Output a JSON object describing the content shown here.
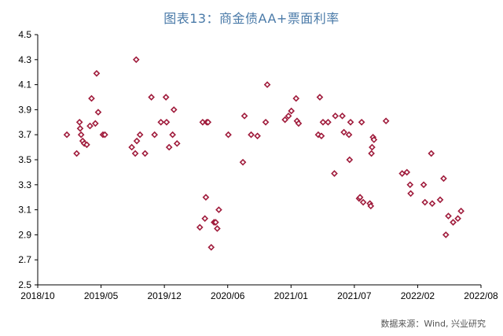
{
  "page": {
    "title": "图表13：商金债AA+票面利率",
    "source": "数据来源：Wind, 兴业研究"
  },
  "colors": {
    "title": "#4a7aa8",
    "marker_stroke": "#a01c3c",
    "marker_fill": "#ffffff",
    "axis": "#000000"
  },
  "chart_data": {
    "type": "scatter",
    "title": "图表13：商金债AA+票面利率",
    "xlabel": "",
    "ylabel": "",
    "grid": false,
    "x_range": [
      "2018-10",
      "2022-08"
    ],
    "x_tick_labels": [
      "2018/10",
      "2019/05",
      "2019/12",
      "2020/06",
      "2021/01",
      "2021/07",
      "2022/02",
      "2022/08"
    ],
    "ylim": [
      2.5,
      4.5
    ],
    "y_ticks": [
      2.5,
      2.7,
      2.9,
      3.1,
      3.3,
      3.5,
      3.7,
      3.9,
      4.1,
      4.3,
      4.5
    ],
    "y_tick_labels": [
      "2.5",
      "2.7",
      "2.9",
      "3.1",
      "3.3",
      "3.5",
      "3.7",
      "3.9",
      "4.1",
      "4.3",
      "4.5"
    ],
    "points": [
      [
        "2019-01-01",
        3.7
      ],
      [
        "2019-02-01",
        3.55
      ],
      [
        "2019-02-10",
        3.8
      ],
      [
        "2019-02-12",
        3.75
      ],
      [
        "2019-02-15",
        3.7
      ],
      [
        "2019-02-20",
        3.65
      ],
      [
        "2019-02-25",
        3.63
      ],
      [
        "2019-03-05",
        3.62
      ],
      [
        "2019-03-15",
        3.77
      ],
      [
        "2019-03-20",
        3.99
      ],
      [
        "2019-04-01",
        3.79
      ],
      [
        "2019-04-05",
        4.19
      ],
      [
        "2019-04-10",
        3.88
      ],
      [
        "2019-04-25",
        3.7
      ],
      [
        "2019-05-01",
        3.7
      ],
      [
        "2019-07-25",
        3.6
      ],
      [
        "2019-08-05",
        3.55
      ],
      [
        "2019-08-08",
        4.3
      ],
      [
        "2019-08-10",
        3.65
      ],
      [
        "2019-08-20",
        3.7
      ],
      [
        "2019-09-05",
        3.55
      ],
      [
        "2019-09-25",
        4.0
      ],
      [
        "2019-10-05",
        3.7
      ],
      [
        "2019-10-25",
        3.8
      ],
      [
        "2019-11-10",
        4.0
      ],
      [
        "2019-11-12",
        3.8
      ],
      [
        "2019-11-20",
        3.6
      ],
      [
        "2019-12-01",
        3.7
      ],
      [
        "2019-12-05",
        3.9
      ],
      [
        "2019-12-15",
        3.63
      ],
      [
        "2020-02-25",
        2.96
      ],
      [
        "2020-03-05",
        3.8
      ],
      [
        "2020-03-12",
        3.03
      ],
      [
        "2020-03-15",
        3.2
      ],
      [
        "2020-03-18",
        3.8
      ],
      [
        "2020-03-22",
        3.8
      ],
      [
        "2020-04-01",
        2.8
      ],
      [
        "2020-04-10",
        3.0
      ],
      [
        "2020-04-15",
        3.0
      ],
      [
        "2020-04-20",
        2.95
      ],
      [
        "2020-04-25",
        3.1
      ],
      [
        "2020-05-25",
        3.7
      ],
      [
        "2020-07-10",
        3.48
      ],
      [
        "2020-07-15",
        3.85
      ],
      [
        "2020-08-05",
        3.7
      ],
      [
        "2020-08-25",
        3.69
      ],
      [
        "2020-09-20",
        3.8
      ],
      [
        "2020-09-25",
        4.1
      ],
      [
        "2020-11-20",
        3.82
      ],
      [
        "2020-12-01",
        3.85
      ],
      [
        "2020-12-10",
        3.89
      ],
      [
        "2020-12-25",
        3.99
      ],
      [
        "2020-12-28",
        3.81
      ],
      [
        "2021-01-02",
        3.79
      ],
      [
        "2021-03-05",
        3.7
      ],
      [
        "2021-03-10",
        4.0
      ],
      [
        "2021-03-15",
        3.69
      ],
      [
        "2021-03-20",
        3.8
      ],
      [
        "2021-04-05",
        3.8
      ],
      [
        "2021-04-25",
        3.39
      ],
      [
        "2021-04-28",
        3.85
      ],
      [
        "2021-05-20",
        3.85
      ],
      [
        "2021-05-25",
        3.72
      ],
      [
        "2021-06-10",
        3.7
      ],
      [
        "2021-06-12",
        3.5
      ],
      [
        "2021-06-15",
        3.8
      ],
      [
        "2021-07-12",
        3.19
      ],
      [
        "2021-07-15",
        3.2
      ],
      [
        "2021-07-20",
        3.8
      ],
      [
        "2021-07-25",
        3.16
      ],
      [
        "2021-08-15",
        3.15
      ],
      [
        "2021-08-18",
        3.13
      ],
      [
        "2021-08-20",
        3.55
      ],
      [
        "2021-08-22",
        3.6
      ],
      [
        "2021-08-25",
        3.68
      ],
      [
        "2021-08-28",
        3.66
      ],
      [
        "2021-10-05",
        3.81
      ],
      [
        "2021-11-25",
        3.39
      ],
      [
        "2021-12-10",
        3.4
      ],
      [
        "2021-12-20",
        3.3
      ],
      [
        "2021-12-22",
        3.23
      ],
      [
        "2022-02-01",
        3.3
      ],
      [
        "2022-02-05",
        3.16
      ],
      [
        "2022-02-25",
        3.55
      ],
      [
        "2022-02-28",
        3.15
      ],
      [
        "2022-03-25",
        3.18
      ],
      [
        "2022-04-05",
        3.35
      ],
      [
        "2022-04-12",
        2.9
      ],
      [
        "2022-04-20",
        3.05
      ],
      [
        "2022-05-05",
        3.0
      ],
      [
        "2022-05-20",
        3.03
      ],
      [
        "2022-05-30",
        3.09
      ]
    ]
  }
}
